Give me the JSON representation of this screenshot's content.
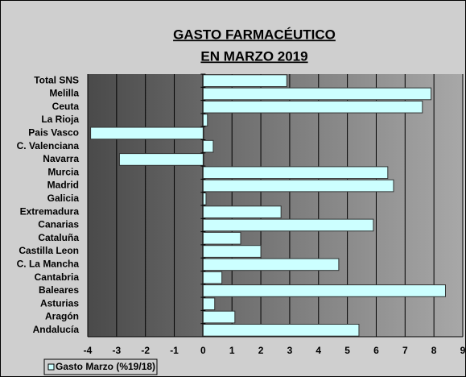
{
  "chart_data": {
    "type": "hbar",
    "title_lines": [
      "GASTO FARMACÉUTICO",
      "EN MARZO 2019"
    ],
    "categories": [
      "Total SNS",
      "Melilla",
      "Ceuta",
      "La Rioja",
      "Pais Vasco",
      "C. Valenciana",
      "Navarra",
      "Murcia",
      "Madrid",
      "Galicia",
      "Extremadura",
      "Canarias",
      "Cataluña",
      "Castilla Leon",
      "C. La Mancha",
      "Cantabria",
      "Baleares",
      "Asturias",
      "Aragón",
      "Andalucía"
    ],
    "series": [
      {
        "name": "Gasto Marzo (%19/18)",
        "color": "#ccffff",
        "values": [
          2.9,
          7.9,
          7.6,
          0.15,
          -3.9,
          0.35,
          -2.9,
          6.4,
          6.6,
          0.1,
          2.7,
          5.9,
          1.3,
          2.0,
          4.7,
          0.65,
          8.4,
          0.4,
          1.1,
          5.4
        ]
      }
    ],
    "xlim": [
      -4,
      9
    ],
    "xticks": [
      -4,
      -3,
      -2,
      -1,
      0,
      1,
      2,
      3,
      4,
      5,
      6,
      7,
      8,
      9
    ],
    "grid": true
  }
}
